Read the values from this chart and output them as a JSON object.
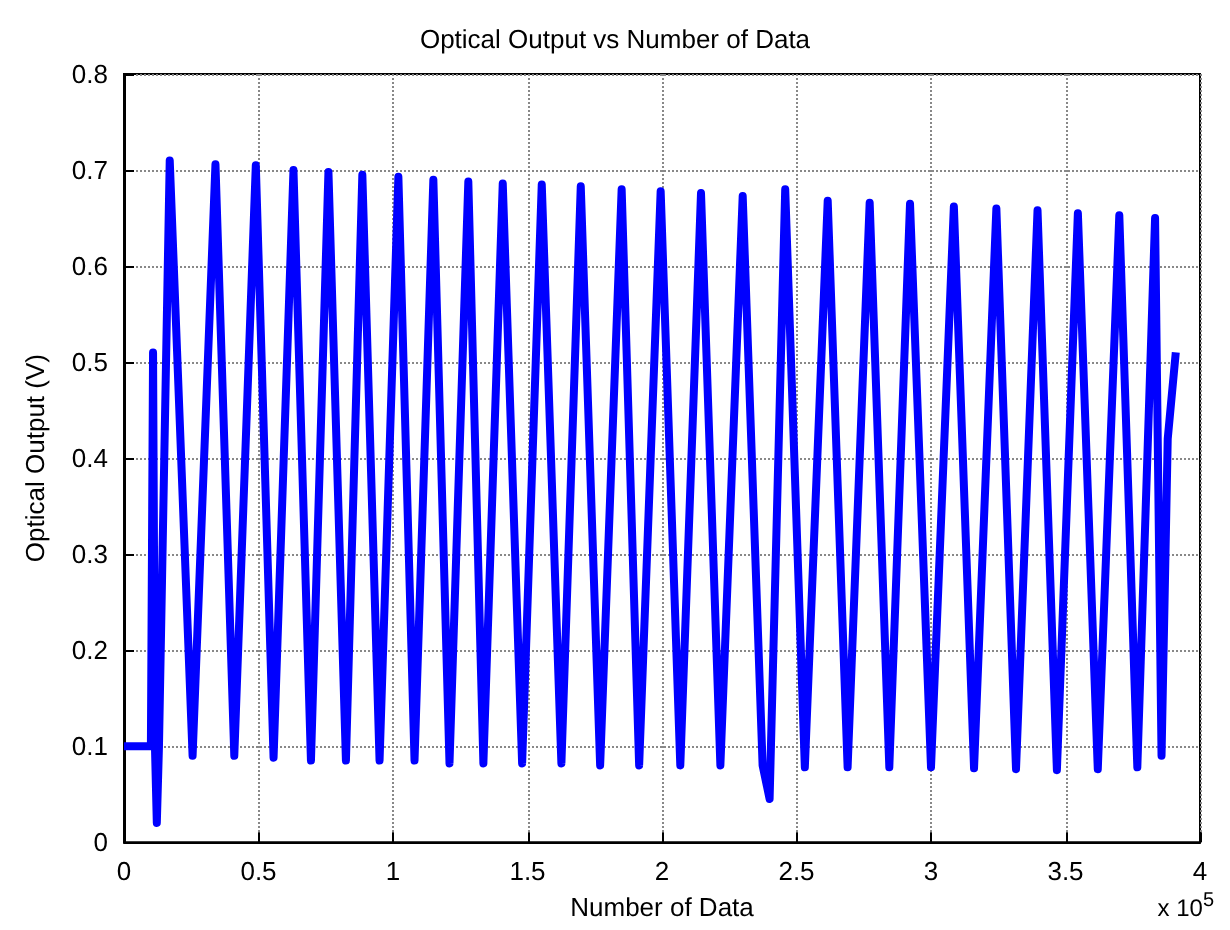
{
  "chart_data": {
    "type": "line",
    "title": "Optical Output vs Number of Data",
    "xlabel": "Number of Data",
    "ylabel": "Optical Output (V)",
    "annotations": [
      "x 10$^{5}$"
    ],
    "series": [
      {
        "color": "#0000ff",
        "x": [
          0,
          0.1,
          0.108,
          0.115,
          0.122,
          0.13,
          0.17,
          0.255,
          0.34,
          0.41,
          0.49,
          0.556,
          0.63,
          0.695,
          0.76,
          0.825,
          0.886,
          0.95,
          1.02,
          1.08,
          1.15,
          1.21,
          1.28,
          1.336,
          1.408,
          1.48,
          1.553,
          1.626,
          1.698,
          1.77,
          1.85,
          1.915,
          1.995,
          2.068,
          2.145,
          2.217,
          2.3,
          2.374,
          2.4,
          2.458,
          2.531,
          2.616,
          2.69,
          2.772,
          2.845,
          2.922,
          3.0,
          3.085,
          3.16,
          3.243,
          3.316,
          3.396,
          3.468,
          3.546,
          3.62,
          3.7,
          3.767,
          3.833,
          3.857,
          3.88,
          3.91
        ],
        "values": [
          0.1,
          0.1,
          0.51,
          0.1,
          0.02,
          0.1,
          0.71,
          0.09,
          0.706,
          0.09,
          0.705,
          0.088,
          0.7,
          0.085,
          0.698,
          0.085,
          0.695,
          0.085,
          0.693,
          0.085,
          0.69,
          0.082,
          0.688,
          0.082,
          0.686,
          0.082,
          0.685,
          0.082,
          0.683,
          0.08,
          0.68,
          0.08,
          0.678,
          0.08,
          0.676,
          0.08,
          0.673,
          0.08,
          0.045,
          0.68,
          0.078,
          0.668,
          0.078,
          0.666,
          0.078,
          0.665,
          0.078,
          0.662,
          0.077,
          0.66,
          0.076,
          0.658,
          0.075,
          0.655,
          0.076,
          0.653,
          0.078,
          0.65,
          0.09,
          0.42,
          0.51
        ]
      }
    ],
    "xlim": [
      0,
      4
    ],
    "xticks": [
      0,
      0.5,
      1,
      1.5,
      2,
      2.5,
      3,
      3.5,
      4
    ],
    "ylim": [
      0,
      0.8
    ],
    "yticks": [
      0,
      0.1,
      0.2,
      0.3,
      0.4,
      0.5,
      0.6,
      0.7,
      0.8
    ],
    "grid": true,
    "marker": "none",
    "line_style": "solid"
  }
}
